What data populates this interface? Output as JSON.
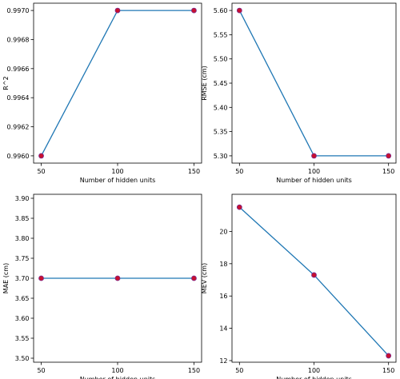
{
  "colors": {
    "line": "#1f77b4",
    "marker_fill": "#c8102e",
    "marker_edge": "#7b2b8f"
  },
  "chart_data": [
    {
      "type": "line",
      "x": [
        50,
        100,
        150
      ],
      "values": [
        0.996,
        0.997,
        0.997
      ],
      "xlabel": "Number of hidden units",
      "ylabel": "R^2",
      "xlim": [
        45,
        155
      ],
      "ylim": [
        0.99595,
        0.99705
      ],
      "xticks": [
        "50",
        "100",
        "150"
      ],
      "xtick_values": [
        50,
        100,
        150
      ],
      "yticks": [
        "0.9960",
        "0.9962",
        "0.9964",
        "0.9966",
        "0.9968",
        "0.9970"
      ],
      "ytick_values": [
        0.996,
        0.9962,
        0.9964,
        0.9966,
        0.9968,
        0.997
      ],
      "grid": false
    },
    {
      "type": "line",
      "x": [
        50,
        100,
        150
      ],
      "values": [
        5.6,
        5.3,
        5.3
      ],
      "xlabel": "Number of hidden units",
      "ylabel": "RMSE (cm)",
      "xlim": [
        45,
        155
      ],
      "ylim": [
        5.285,
        5.615
      ],
      "xticks": [
        "50",
        "100",
        "150"
      ],
      "xtick_values": [
        50,
        100,
        150
      ],
      "yticks": [
        "5.30",
        "5.35",
        "5.40",
        "5.45",
        "5.50",
        "5.55",
        "5.60"
      ],
      "ytick_values": [
        5.3,
        5.35,
        5.4,
        5.45,
        5.5,
        5.55,
        5.6
      ],
      "grid": false
    },
    {
      "type": "line",
      "x": [
        50,
        100,
        150
      ],
      "values": [
        3.7,
        3.7,
        3.7
      ],
      "xlabel": "Number of hidden units",
      "ylabel": "MAE (cm)",
      "xlim": [
        45,
        155
      ],
      "ylim": [
        3.49,
        3.91
      ],
      "xticks": [
        "50",
        "100",
        "150"
      ],
      "xtick_values": [
        50,
        100,
        150
      ],
      "yticks": [
        "3.50",
        "3.55",
        "3.60",
        "3.65",
        "3.70",
        "3.75",
        "3.80",
        "3.85",
        "3.90"
      ],
      "ytick_values": [
        3.5,
        3.55,
        3.6,
        3.65,
        3.7,
        3.75,
        3.8,
        3.85,
        3.9
      ],
      "grid": false
    },
    {
      "type": "line",
      "x": [
        50,
        100,
        150
      ],
      "values": [
        21.5,
        17.3,
        12.3
      ],
      "xlabel": "Number of hidden units",
      "ylabel": "MEV (cm)",
      "xlim": [
        45,
        155
      ],
      "ylim": [
        11.9,
        22.3
      ],
      "xticks": [
        "50",
        "100",
        "150"
      ],
      "xtick_values": [
        50,
        100,
        150
      ],
      "yticks": [
        "12",
        "14",
        "16",
        "18",
        "20"
      ],
      "ytick_values": [
        12,
        14,
        16,
        18,
        20
      ],
      "grid": false
    }
  ]
}
